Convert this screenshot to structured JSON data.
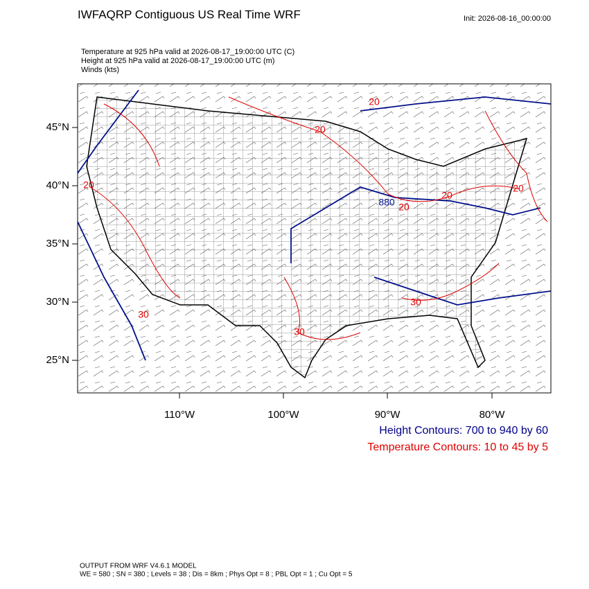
{
  "header": {
    "title": "IWFAQRP Contiguous US Real Time WRF",
    "init": "Init: 2026-08-16_00:00:00"
  },
  "fields": [
    "Temperature at 925 hPa valid at 2026-08-17_19:00:00 UTC   (C)",
    "Height at 925 hPa valid at 2026-08-17_19:00:00 UTC   (m)",
    "Winds   (kts)"
  ],
  "map": {
    "lat_labels": [
      "45°N",
      "40°N",
      "35°N",
      "30°N",
      "25°N"
    ],
    "lon_labels": [
      "110°W",
      "100°W",
      "90°W",
      "80°W"
    ],
    "contour_labels": [
      "20",
      "20",
      "20",
      "880",
      "20",
      "20",
      "20",
      "30",
      "30",
      "30"
    ]
  },
  "legend": [
    "Height Contours: 700 to 940 by 60",
    "Temperature Contours: 10 to 45 by 5"
  ],
  "footer": [
    "OUTPUT FROM WRF V4.6.1 MODEL",
    "WE = 580 ; SN = 380 ; Levels = 38 ; Dis = 8km ; Phys Opt = 8 ; PBL Opt = 1 ; Cu Opt = 5"
  ]
}
